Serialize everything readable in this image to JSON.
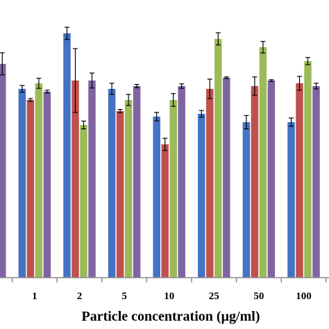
{
  "chart_data": {
    "type": "bar",
    "title": "",
    "xlabel": "Particle concentration (µg/ml)",
    "ylabel": "",
    "categories": [
      "",
      "1",
      "2",
      "5",
      "10",
      "25",
      "50",
      "100"
    ],
    "ylim": [
      0,
      100
    ],
    "grid": false,
    "legend": "none",
    "colors": [
      "#4472C4",
      "#C0504D",
      "#9BBB59",
      "#8064A2"
    ],
    "series": [
      {
        "values": [
          null,
          68,
          88,
          68,
          58,
          59,
          56,
          56
        ],
        "errors": [
          0,
          1.2,
          2.2,
          2,
          1.5,
          1.2,
          2.4,
          1.5
        ]
      },
      {
        "values": [
          null,
          64,
          71,
          60,
          48,
          68,
          69,
          70
        ],
        "errors": [
          0,
          0.5,
          11.5,
          0.6,
          2.2,
          3.5,
          3.3,
          2.5
        ]
      },
      {
        "values": [
          null,
          70,
          55,
          64,
          64,
          86,
          83,
          78
        ],
        "errors": [
          0,
          1.8,
          1.4,
          2,
          2.3,
          2.2,
          2.1,
          1.3
        ]
      },
      {
        "values": [
          77,
          67,
          71,
          69,
          69,
          72,
          71,
          69
        ],
        "errors": [
          4,
          0.5,
          2.7,
          0.6,
          0.8,
          0.3,
          0.3,
          1
        ]
      }
    ]
  }
}
